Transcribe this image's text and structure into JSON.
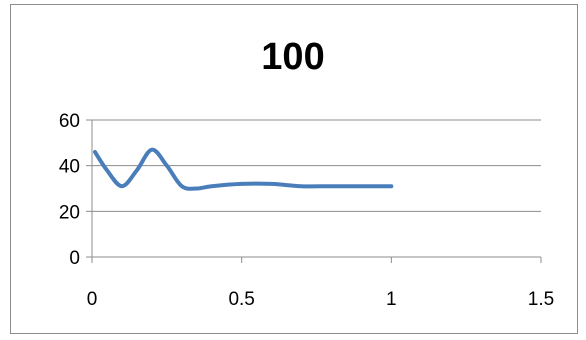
{
  "chart_data": {
    "type": "line",
    "title": "100",
    "xlabel": "",
    "ylabel": "",
    "xlim": [
      0,
      1.5
    ],
    "ylim": [
      0,
      60
    ],
    "x_ticks": [
      0,
      0.5,
      1,
      1.5
    ],
    "x_tick_labels": [
      "0",
      "0.5",
      "1",
      "1.5"
    ],
    "y_ticks": [
      0,
      20,
      40,
      60
    ],
    "y_tick_labels": [
      "0",
      "20",
      "40",
      "60"
    ],
    "grid": "horizontal",
    "legend": "none",
    "series": [
      {
        "color": "#4a7ebb",
        "x": [
          0.01,
          0.05,
          0.1,
          0.15,
          0.2,
          0.25,
          0.3,
          0.35,
          0.4,
          0.5,
          0.6,
          0.7,
          0.8,
          0.9,
          1.0
        ],
        "y": [
          46,
          38,
          31,
          38,
          47,
          40,
          31,
          30,
          31,
          32,
          32,
          31,
          31,
          31,
          31
        ]
      }
    ]
  }
}
